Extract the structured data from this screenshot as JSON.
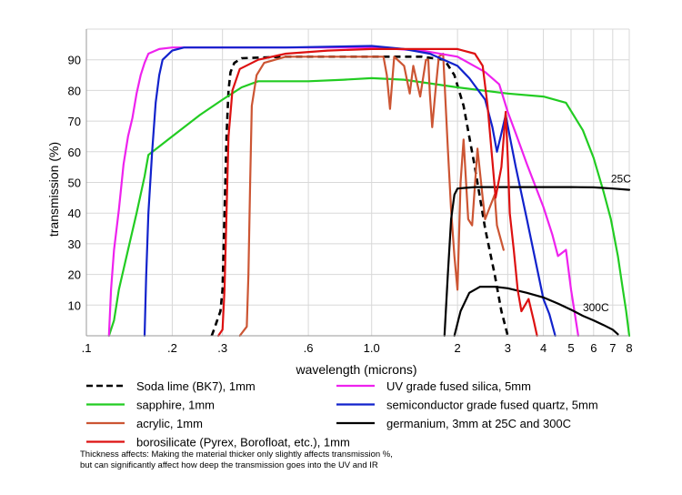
{
  "chart_data": {
    "type": "line",
    "title": "",
    "xlabel": "wavelength (microns)",
    "ylabel": "transmission (%)",
    "x_scale": "log",
    "xlim": [
      0.1,
      8
    ],
    "ylim": [
      0,
      100
    ],
    "x_ticks": [
      {
        "value": 0.1,
        "label": ".1"
      },
      {
        "value": 0.2,
        "label": ".2"
      },
      {
        "value": 0.3,
        "label": ".3"
      },
      {
        "value": 0.6,
        "label": ".6"
      },
      {
        "value": 1.0,
        "label": "1.0"
      },
      {
        "value": 2,
        "label": "2"
      },
      {
        "value": 3,
        "label": "3"
      },
      {
        "value": 4,
        "label": "4"
      },
      {
        "value": 5,
        "label": "5"
      },
      {
        "value": 6,
        "label": "6"
      },
      {
        "value": 7,
        "label": "7"
      },
      {
        "value": 8,
        "label": "8"
      }
    ],
    "y_ticks": [
      10,
      20,
      30,
      40,
      50,
      60,
      70,
      80,
      90
    ],
    "grid": true,
    "legend_position": "below",
    "series": [
      {
        "name": "Soda lime (BK7), 1mm",
        "color": "#000000",
        "dash": true,
        "points": [
          [
            0.275,
            0
          ],
          [
            0.28,
            2
          ],
          [
            0.295,
            8
          ],
          [
            0.3,
            15
          ],
          [
            0.305,
            40
          ],
          [
            0.31,
            65
          ],
          [
            0.315,
            80
          ],
          [
            0.32,
            86
          ],
          [
            0.33,
            89
          ],
          [
            0.35,
            90.5
          ],
          [
            0.5,
            91
          ],
          [
            1.0,
            91
          ],
          [
            1.5,
            91
          ],
          [
            1.8,
            90
          ],
          [
            1.95,
            85
          ],
          [
            2.1,
            75
          ],
          [
            2.3,
            55
          ],
          [
            2.5,
            35
          ],
          [
            2.7,
            20
          ],
          [
            2.85,
            8
          ],
          [
            3.0,
            0
          ]
        ]
      },
      {
        "name": "sapphire, 1mm",
        "color": "#22cc22",
        "dash": false,
        "points": [
          [
            0.12,
            0
          ],
          [
            0.125,
            5
          ],
          [
            0.13,
            15
          ],
          [
            0.14,
            28
          ],
          [
            0.15,
            40
          ],
          [
            0.16,
            52
          ],
          [
            0.165,
            59
          ],
          [
            0.2,
            65
          ],
          [
            0.25,
            72
          ],
          [
            0.3,
            77
          ],
          [
            0.35,
            81
          ],
          [
            0.4,
            83
          ],
          [
            0.5,
            83
          ],
          [
            0.6,
            83
          ],
          [
            0.8,
            83.5
          ],
          [
            1.0,
            84
          ],
          [
            1.3,
            83.5
          ],
          [
            2.0,
            81
          ],
          [
            3.0,
            79
          ],
          [
            4.0,
            78
          ],
          [
            4.8,
            76
          ],
          [
            5.5,
            67
          ],
          [
            6.0,
            58
          ],
          [
            6.5,
            47
          ],
          [
            6.9,
            38
          ],
          [
            7.3,
            26
          ],
          [
            7.6,
            15
          ],
          [
            7.8,
            8
          ],
          [
            8.0,
            0
          ]
        ]
      },
      {
        "name": "acrylic, 1mm",
        "color": "#cc5533",
        "dash": false,
        "points": [
          [
            0.345,
            0
          ],
          [
            0.365,
            3
          ],
          [
            0.37,
            20
          ],
          [
            0.375,
            50
          ],
          [
            0.38,
            75
          ],
          [
            0.395,
            85
          ],
          [
            0.42,
            89
          ],
          [
            0.5,
            91
          ],
          [
            0.6,
            91
          ],
          [
            0.8,
            91
          ],
          [
            1.1,
            91
          ],
          [
            1.13,
            85
          ],
          [
            1.16,
            74
          ],
          [
            1.2,
            91
          ],
          [
            1.3,
            88
          ],
          [
            1.36,
            79
          ],
          [
            1.4,
            88
          ],
          [
            1.48,
            78
          ],
          [
            1.55,
            90
          ],
          [
            1.58,
            90
          ],
          [
            1.6,
            79
          ],
          [
            1.63,
            68
          ],
          [
            1.67,
            79
          ],
          [
            1.72,
            91
          ],
          [
            1.78,
            92
          ],
          [
            1.85,
            61
          ],
          [
            1.9,
            41
          ],
          [
            1.95,
            26
          ],
          [
            2.0,
            15
          ],
          [
            2.05,
            50
          ],
          [
            2.1,
            64
          ],
          [
            2.18,
            38
          ],
          [
            2.25,
            36
          ],
          [
            2.35,
            61
          ],
          [
            2.45,
            45
          ],
          [
            2.5,
            38
          ],
          [
            2.7,
            46
          ],
          [
            2.75,
            36
          ],
          [
            2.9,
            28
          ]
        ]
      },
      {
        "name": "UV grade fused silica, 5mm",
        "color": "#ee22ee",
        "dash": false,
        "points": [
          [
            0.12,
            0
          ],
          [
            0.122,
            15
          ],
          [
            0.125,
            28
          ],
          [
            0.13,
            41
          ],
          [
            0.135,
            56
          ],
          [
            0.14,
            65
          ],
          [
            0.145,
            71
          ],
          [
            0.15,
            79
          ],
          [
            0.155,
            85
          ],
          [
            0.16,
            89
          ],
          [
            0.165,
            92
          ],
          [
            0.18,
            93.5
          ],
          [
            0.2,
            94
          ],
          [
            0.5,
            94
          ],
          [
            1.0,
            94
          ],
          [
            1.5,
            93
          ],
          [
            2.0,
            91
          ],
          [
            2.5,
            86
          ],
          [
            2.8,
            82
          ],
          [
            3.0,
            73
          ],
          [
            3.2,
            66
          ],
          [
            3.5,
            56
          ],
          [
            4.0,
            42
          ],
          [
            4.3,
            33
          ],
          [
            4.5,
            26
          ],
          [
            4.8,
            28
          ],
          [
            5.0,
            15
          ],
          [
            5.3,
            0
          ]
        ]
      },
      {
        "name": "semiconductor grade fused quartz, 5mm",
        "color": "#1122cc",
        "dash": false,
        "points": [
          [
            0.16,
            0
          ],
          [
            0.162,
            19
          ],
          [
            0.165,
            40
          ],
          [
            0.17,
            60
          ],
          [
            0.175,
            76
          ],
          [
            0.18,
            85
          ],
          [
            0.185,
            90
          ],
          [
            0.2,
            93
          ],
          [
            0.22,
            94
          ],
          [
            0.5,
            94
          ],
          [
            1.0,
            94.5
          ],
          [
            1.3,
            93.5
          ],
          [
            1.6,
            92
          ],
          [
            2.0,
            88
          ],
          [
            2.2,
            84
          ],
          [
            2.5,
            77
          ],
          [
            2.65,
            68
          ],
          [
            2.75,
            60
          ],
          [
            2.85,
            66
          ],
          [
            2.95,
            72
          ],
          [
            3.05,
            65
          ],
          [
            3.2,
            55
          ],
          [
            3.5,
            38
          ],
          [
            3.8,
            22
          ],
          [
            4.0,
            12
          ],
          [
            4.2,
            7
          ],
          [
            4.4,
            0
          ]
        ]
      },
      {
        "name": "germanium, 3mm at 25C and 300C",
        "color": "#000000",
        "dash": false,
        "points": [
          [
            1.8,
            0
          ],
          [
            1.85,
            20
          ],
          [
            1.9,
            38
          ],
          [
            1.95,
            46
          ],
          [
            2.0,
            48
          ],
          [
            2.3,
            48.5
          ],
          [
            3,
            48.5
          ],
          [
            4,
            48.5
          ],
          [
            5,
            48.5
          ],
          [
            6,
            48.4
          ],
          [
            7,
            48
          ],
          [
            8,
            47.6
          ]
        ]
      },
      {
        "name": "germanium 300C",
        "color": "#000000",
        "dash": false,
        "points": [
          [
            1.95,
            0
          ],
          [
            2.05,
            8
          ],
          [
            2.2,
            14
          ],
          [
            2.4,
            16
          ],
          [
            2.7,
            16
          ],
          [
            3.0,
            15.5
          ],
          [
            3.5,
            14
          ],
          [
            4.0,
            12.5
          ],
          [
            4.5,
            10.5
          ],
          [
            5.0,
            8.5
          ],
          [
            5.5,
            6.5
          ],
          [
            6.0,
            5
          ],
          [
            6.5,
            3.5
          ],
          [
            7.0,
            2
          ],
          [
            7.3,
            0.5
          ]
        ]
      },
      {
        "name": "borosilicate (Pyrex, Borofloat, etc.), 1mm",
        "color": "#dd1111",
        "dash": false,
        "points": [
          [
            0.29,
            0
          ],
          [
            0.3,
            2
          ],
          [
            0.305,
            15
          ],
          [
            0.31,
            40
          ],
          [
            0.315,
            65
          ],
          [
            0.325,
            80
          ],
          [
            0.345,
            87
          ],
          [
            0.4,
            90
          ],
          [
            0.5,
            92
          ],
          [
            0.7,
            93
          ],
          [
            1.0,
            93.5
          ],
          [
            1.5,
            93.5
          ],
          [
            2.0,
            93.5
          ],
          [
            2.3,
            92
          ],
          [
            2.45,
            88
          ],
          [
            2.55,
            75
          ],
          [
            2.65,
            57
          ],
          [
            2.72,
            45
          ],
          [
            2.85,
            55
          ],
          [
            2.95,
            73
          ],
          [
            3.0,
            58
          ],
          [
            3.05,
            40
          ],
          [
            3.15,
            28
          ],
          [
            3.25,
            15
          ],
          [
            3.35,
            8
          ],
          [
            3.45,
            10
          ],
          [
            3.55,
            12
          ],
          [
            3.7,
            5
          ],
          [
            3.8,
            0
          ]
        ]
      }
    ],
    "annotations": [
      {
        "text": "25C",
        "x": 6.9,
        "y": 50
      },
      {
        "text": "300C",
        "x": 5.5,
        "y": 8
      }
    ]
  },
  "legend": [
    {
      "label": "Soda lime (BK7), 1mm",
      "color": "#000000",
      "dash": true
    },
    {
      "label": "UV grade fused silica, 5mm",
      "color": "#ee22ee",
      "dash": false
    },
    {
      "label": "sapphire, 1mm",
      "color": "#22cc22",
      "dash": false
    },
    {
      "label": "semiconductor grade fused quartz, 5mm",
      "color": "#1122cc",
      "dash": false
    },
    {
      "label": "acrylic, 1mm",
      "color": "#cc5533",
      "dash": false
    },
    {
      "label": "germanium, 3mm at 25C and 300C",
      "color": "#000000",
      "dash": false
    },
    {
      "label": "borosilicate (Pyrex, Borofloat, etc.), 1mm",
      "color": "#dd1111",
      "dash": false
    }
  ],
  "note": {
    "line1": "Thickness affects: Making the material thicker only slightly affects transmission %,",
    "line2": "but can significantly affect how deep the transmission goes into the UV and IR"
  }
}
